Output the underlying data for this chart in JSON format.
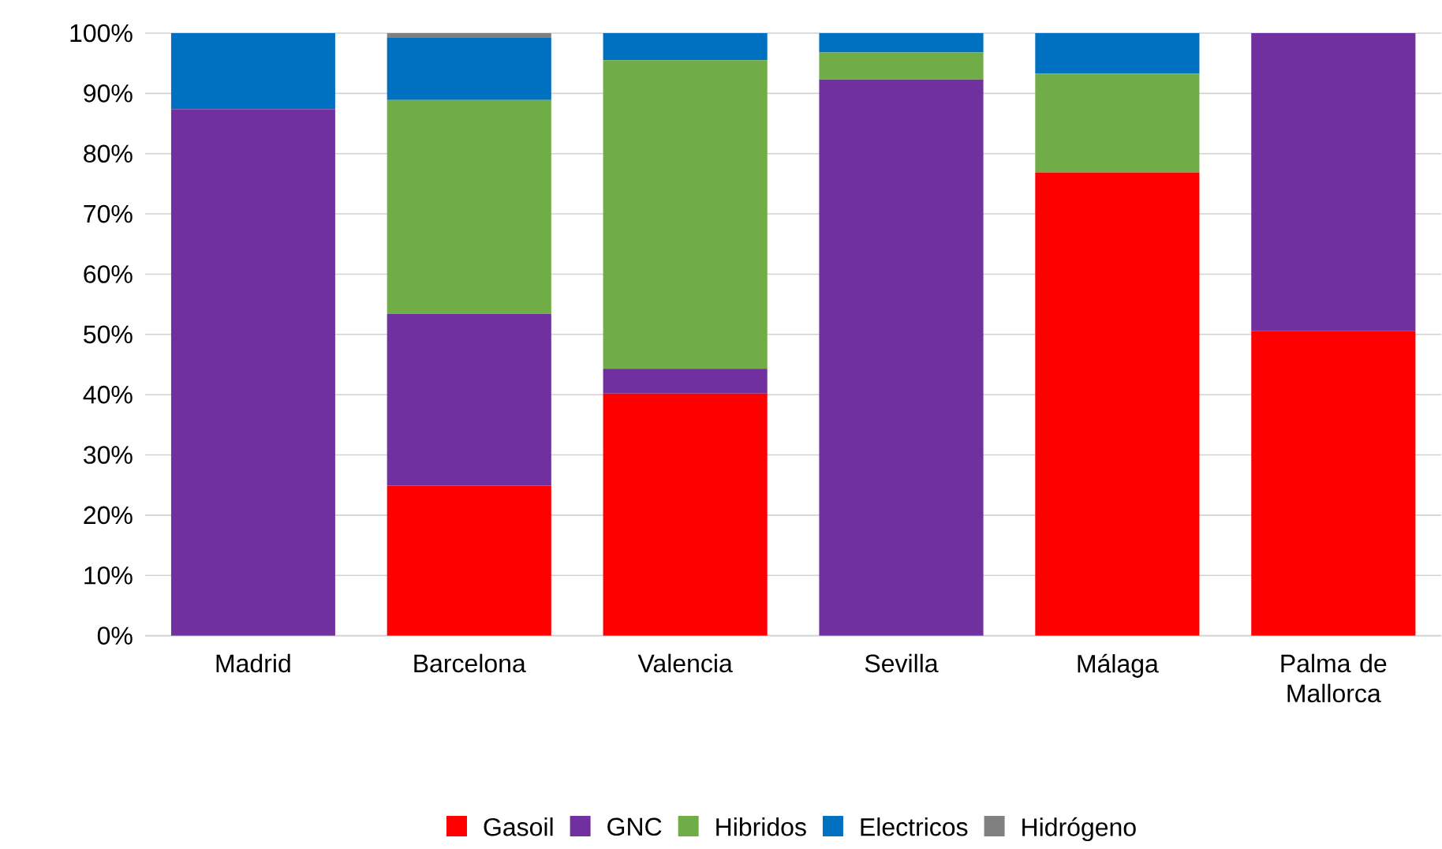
{
  "chart_data": {
    "type": "bar",
    "stacked": true,
    "categories": [
      "Madrid",
      "Barcelona",
      "Valencia",
      "Sevilla",
      "Málaga",
      "Palma de Mallorca"
    ],
    "series": [
      {
        "name": "Gasoil",
        "color": "#ff0000",
        "values": [
          0,
          24.9,
          40.2,
          0,
          76.9,
          50.6
        ]
      },
      {
        "name": "GNC",
        "color": "#7030a0",
        "values": [
          87.4,
          28.5,
          4.1,
          92.3,
          0,
          49.4
        ]
      },
      {
        "name": "Hibridos",
        "color": "#70ad47",
        "values": [
          0,
          35.5,
          51.2,
          4.5,
          16.4,
          0
        ]
      },
      {
        "name": "Electricos",
        "color": "#0070c0",
        "values": [
          12.6,
          10.3,
          4.5,
          3.2,
          6.7,
          0
        ]
      },
      {
        "name": "Hidrógeno",
        "color": "#808080",
        "values": [
          0,
          0.8,
          0,
          0,
          0,
          0
        ]
      }
    ],
    "ylim": [
      0,
      100
    ],
    "yticks": [
      {
        "value": 0,
        "label": "0%"
      },
      {
        "value": 10,
        "label": "10%"
      },
      {
        "value": 20,
        "label": "20%"
      },
      {
        "value": 30,
        "label": "30%"
      },
      {
        "value": 40,
        "label": "40%"
      },
      {
        "value": 50,
        "label": "50%"
      },
      {
        "value": 60,
        "label": "60%"
      },
      {
        "value": 70,
        "label": "70%"
      },
      {
        "value": 80,
        "label": "80%"
      },
      {
        "value": 90,
        "label": "90%"
      },
      {
        "value": 100,
        "label": "100%"
      }
    ],
    "grid": "y",
    "legend": "bottom"
  }
}
